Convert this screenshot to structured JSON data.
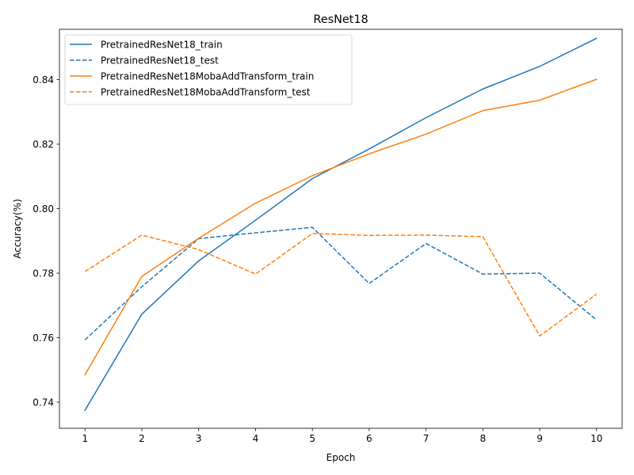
{
  "chart_data": {
    "type": "line",
    "title": "ResNet18",
    "xlabel": "Epoch",
    "ylabel": "Accuracy(%)",
    "x": [
      1,
      2,
      3,
      4,
      5,
      6,
      7,
      8,
      9,
      10
    ],
    "xticks": [
      "1",
      "2",
      "3",
      "4",
      "5",
      "6",
      "7",
      "8",
      "9",
      "10"
    ],
    "yticks": [
      "0.74",
      "0.76",
      "0.78",
      "0.80",
      "0.82",
      "0.84"
    ],
    "ytick_values": [
      0.74,
      0.76,
      0.78,
      0.8,
      0.82,
      0.84
    ],
    "xlim": [
      0.55,
      10.45
    ],
    "ylim": [
      0.7319,
      0.8556
    ],
    "grid": false,
    "legend_position": "top-left",
    "series": [
      {
        "name": "PretrainedResNet18_train",
        "color": "#1f77b4",
        "dash": "solid",
        "values": [
          0.7375,
          0.7673,
          0.7838,
          0.7964,
          0.8093,
          0.8185,
          0.8282,
          0.8371,
          0.8441,
          0.8528
        ]
      },
      {
        "name": "PretrainedResNet18_test",
        "color": "#1f77b4",
        "dash": "dashed",
        "values": [
          0.7593,
          0.7758,
          0.7907,
          0.7925,
          0.7942,
          0.7768,
          0.7892,
          0.7797,
          0.78,
          0.7655
        ]
      },
      {
        "name": "PretrainedResNet18MobaAddTransform_train",
        "color": "#ff7f0e",
        "dash": "solid",
        "values": [
          0.7485,
          0.779,
          0.7908,
          0.8017,
          0.8102,
          0.817,
          0.8231,
          0.8304,
          0.8336,
          0.8401
        ]
      },
      {
        "name": "PretrainedResNet18MobaAddTransform_test",
        "color": "#ff7f0e",
        "dash": "dashed",
        "values": [
          0.7805,
          0.7918,
          0.7873,
          0.7797,
          0.7923,
          0.7917,
          0.7918,
          0.7913,
          0.7605,
          0.7735
        ]
      }
    ]
  }
}
